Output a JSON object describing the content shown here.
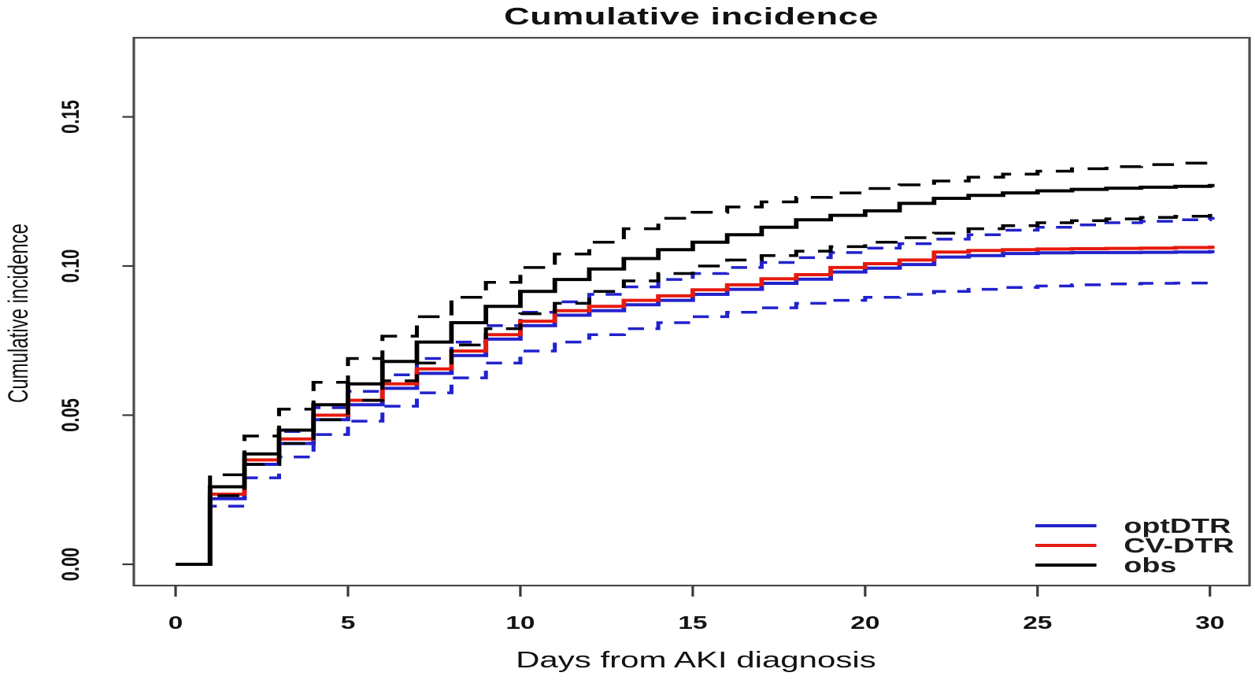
{
  "chart_data": {
    "type": "line",
    "step": true,
    "title": "Cumulative incidence",
    "xlabel": "Days from AKI diagnosis",
    "ylabel": "Cumulative incidence",
    "xlim": [
      0,
      30
    ],
    "ylim": [
      0,
      0.177
    ],
    "grid": false,
    "x_ticks": [
      0,
      5,
      10,
      15,
      20,
      25,
      30
    ],
    "y_ticks": [
      {
        "value": 0.0,
        "label": "0.00"
      },
      {
        "value": 0.05,
        "label": "0.05"
      },
      {
        "value": 0.1,
        "label": "0.10"
      },
      {
        "value": 0.15,
        "label": "0.15"
      }
    ],
    "palette": {
      "blue": "#2222cc",
      "red": "#e61a0d",
      "black": "#000000",
      "axis": "#444444",
      "text": "#1a1a1a"
    },
    "legend_position": "bottom-right",
    "legend": [
      {
        "id": "optDTR",
        "label": "optDTR",
        "color": "#2222cc"
      },
      {
        "id": "CV-DTR",
        "label": "CV-DTR",
        "color": "#e61a0d"
      },
      {
        "id": "obs",
        "label": "obs",
        "color": "#000000"
      }
    ],
    "x_days": [
      0,
      1,
      2,
      3,
      4,
      5,
      6,
      7,
      8,
      9,
      10,
      11,
      12,
      13,
      14,
      15,
      16,
      17,
      18,
      19,
      20,
      21,
      22,
      23,
      24,
      25,
      26,
      27,
      28,
      29,
      30
    ],
    "series": [
      {
        "id": "optDTR-ci-lower",
        "label": "optDTR lower band",
        "color": "#2222cc",
        "line_style": "dashed",
        "values": [
          0,
          0.0195,
          0.029,
          0.036,
          0.0435,
          0.048,
          0.053,
          0.0575,
          0.0625,
          0.0675,
          0.0715,
          0.0745,
          0.077,
          0.079,
          0.081,
          0.083,
          0.0845,
          0.086,
          0.0875,
          0.0885,
          0.0895,
          0.0905,
          0.0915,
          0.0922,
          0.0928,
          0.0933,
          0.0937,
          0.094,
          0.0942,
          0.0943,
          0.0943
        ]
      },
      {
        "id": "optDTR-ci-upper",
        "label": "optDTR upper band",
        "color": "#2222cc",
        "line_style": "dashed",
        "values": [
          0,
          0.026,
          0.037,
          0.0445,
          0.0525,
          0.058,
          0.0635,
          0.069,
          0.0745,
          0.08,
          0.0845,
          0.088,
          0.0905,
          0.093,
          0.0955,
          0.0975,
          0.0995,
          0.1012,
          0.1028,
          0.1045,
          0.106,
          0.1075,
          0.109,
          0.1105,
          0.112,
          0.113,
          0.1138,
          0.1145,
          0.115,
          0.1155,
          0.116
        ]
      },
      {
        "id": "optDTR",
        "label": "optDTR",
        "color": "#2222cc",
        "line_style": "solid",
        "values": [
          0,
          0.022,
          0.0335,
          0.0405,
          0.0485,
          0.0535,
          0.059,
          0.064,
          0.07,
          0.0755,
          0.08,
          0.0835,
          0.085,
          0.087,
          0.0885,
          0.0905,
          0.0922,
          0.0942,
          0.0956,
          0.098,
          0.0993,
          0.1005,
          0.103,
          0.1035,
          0.1042,
          0.1044,
          0.1045,
          0.1045,
          0.1046,
          0.1047,
          0.1048
        ]
      },
      {
        "id": "CV-DTR",
        "label": "CV-DTR",
        "color": "#e61a0d",
        "line_style": "solid",
        "values": [
          0,
          0.0235,
          0.035,
          0.042,
          0.05,
          0.055,
          0.0605,
          0.0655,
          0.0715,
          0.077,
          0.0815,
          0.085,
          0.0865,
          0.0885,
          0.09,
          0.092,
          0.0937,
          0.0957,
          0.0971,
          0.0995,
          0.1008,
          0.102,
          0.1047,
          0.1052,
          0.1055,
          0.1057,
          0.1058,
          0.1059,
          0.106,
          0.1062,
          0.1063
        ]
      },
      {
        "id": "obs-ci-lower",
        "label": "obs lower band",
        "color": "#000000",
        "line_style": "dashed",
        "values": [
          0,
          0.023,
          0.0335,
          0.0405,
          0.0485,
          0.055,
          0.0615,
          0.0675,
          0.0735,
          0.079,
          0.084,
          0.0875,
          0.0915,
          0.095,
          0.0975,
          0.1,
          0.102,
          0.1035,
          0.105,
          0.1065,
          0.108,
          0.1095,
          0.111,
          0.1125,
          0.1135,
          0.1145,
          0.1152,
          0.1158,
          0.1163,
          0.1167,
          0.117
        ]
      },
      {
        "id": "obs-ci-upper",
        "label": "obs upper band",
        "color": "#000000",
        "line_style": "dashed",
        "values": [
          0,
          0.03,
          0.043,
          0.052,
          0.061,
          0.069,
          0.0765,
          0.083,
          0.0895,
          0.0945,
          0.0995,
          0.104,
          0.108,
          0.1125,
          0.116,
          0.118,
          0.1198,
          0.1215,
          0.123,
          0.1245,
          0.126,
          0.1272,
          0.1285,
          0.1298,
          0.1308,
          0.1318,
          0.1326,
          0.1333,
          0.134,
          0.1345,
          0.135
        ]
      },
      {
        "id": "obs",
        "label": "obs",
        "color": "#000000",
        "line_style": "solid",
        "values": [
          0,
          0.026,
          0.037,
          0.045,
          0.0535,
          0.0605,
          0.068,
          0.0745,
          0.081,
          0.0865,
          0.0915,
          0.0955,
          0.099,
          0.1025,
          0.1055,
          0.108,
          0.1105,
          0.113,
          0.1155,
          0.117,
          0.1185,
          0.121,
          0.1227,
          0.1237,
          0.1245,
          0.1252,
          0.1257,
          0.1261,
          0.1264,
          0.1267,
          0.127
        ]
      }
    ]
  }
}
